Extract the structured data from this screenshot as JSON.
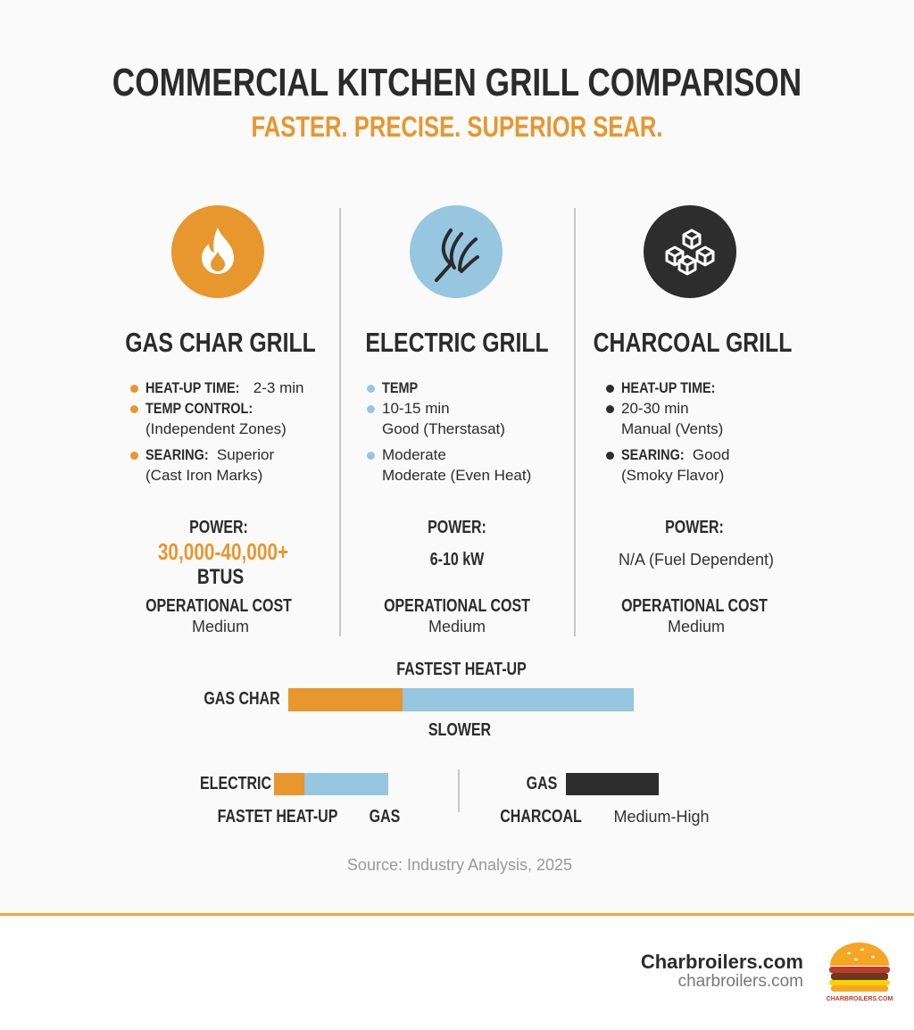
{
  "header": {
    "title": "COMMERCIAL KITCHEN GRILL COMPARISON",
    "subtitle": "FASTER. PRECISE. SUPERIOR SEAR."
  },
  "columns": [
    {
      "name": "GAS CHAR GRILL",
      "bullets": [
        {
          "label": "HEAT-UP TIME:",
          "text": "2-3 min"
        },
        {
          "label": "TEMP CONTROL:",
          "note": "(Independent Zones)"
        },
        {
          "label": "SEARING:",
          "text": "Superior",
          "note": "(Cast Iron Marks)"
        }
      ],
      "power_label": "POWER:",
      "power_value": "30,000-40,000+",
      "power_unit": "BTUS",
      "cost_label": "OPERATIONAL COST",
      "cost_value": "Medium"
    },
    {
      "name": "ELECTRIC GRILL",
      "bullets": [
        {
          "label": "TEMP"
        },
        {
          "text": "10-15 min",
          "note": "Good (Therstasat)"
        },
        {
          "text": "Moderate",
          "note": "Moderate (Even Heat)"
        }
      ],
      "power_label": "POWER:",
      "power_value": "6-10 kW",
      "cost_label": "OPERATIONAL COST",
      "cost_value": "Medium"
    },
    {
      "name": "CHARCOAL GRILL",
      "bullets": [
        {
          "label": "HEAT-UP TIME:"
        },
        {
          "text": "20-30 min",
          "note": "Manual (Vents)"
        },
        {
          "label": "SEARING:",
          "text": "Good",
          "note": "(Smoky Flavor)"
        }
      ],
      "power_label": "POWER:",
      "power_value": "N/A (Fuel Dependent)",
      "cost_label": "OPERATIONAL COST",
      "cost_value": "Medium"
    }
  ],
  "comparison": {
    "top_label": "FASTEST HEAT-UP",
    "row1_label": "GAS CHAR",
    "bottom_label": "SLOWER",
    "row2_label": "ELECTRIC",
    "row2_left_caption": "FASTET HEAT-UP",
    "row2_right_caption": "GAS",
    "row3_label": "GAS",
    "row3_left_caption": "CHARCOAL",
    "row3_right_caption": "Medium-High"
  },
  "source": "Source: Industry Analysis, 2025",
  "footer": {
    "brand": "Charbroilers.com",
    "url": "charbroilers.com",
    "logo_text": "CHARBROILERS.COM"
  }
}
